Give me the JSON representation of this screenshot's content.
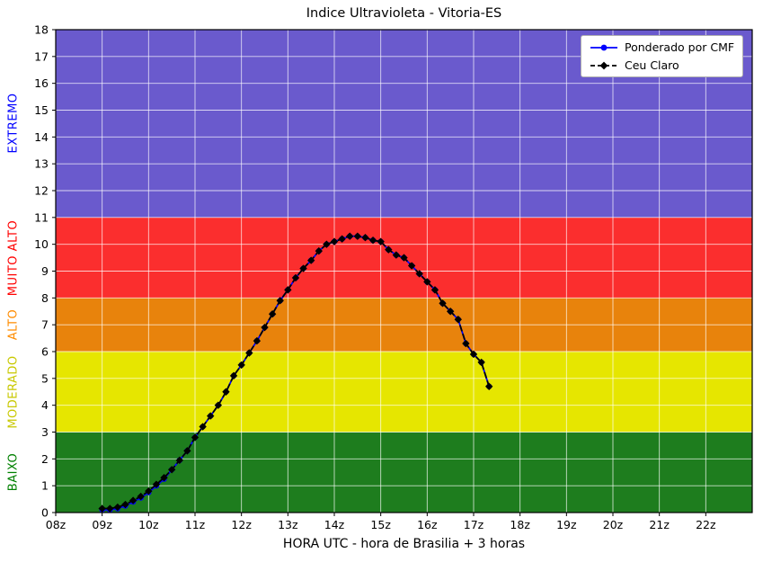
{
  "chart_data": {
    "type": "line",
    "title": "Indice Ultravioleta - Vitoria-ES",
    "xlabel": "HORA UTC - hora de Brasilia + 3 horas",
    "ylabel": "",
    "xlim": [
      8,
      23
    ],
    "ylim": [
      0,
      18
    ],
    "grid": true,
    "grid_color": "#ffffff",
    "x_ticks": [
      {
        "value": 8,
        "label": "08z"
      },
      {
        "value": 9,
        "label": "09z"
      },
      {
        "value": 10,
        "label": "10z"
      },
      {
        "value": 11,
        "label": "11z"
      },
      {
        "value": 12,
        "label": "12z"
      },
      {
        "value": 13,
        "label": "13z"
      },
      {
        "value": 14,
        "label": "14z"
      },
      {
        "value": 15,
        "label": "15z"
      },
      {
        "value": 16,
        "label": "16z"
      },
      {
        "value": 17,
        "label": "17z"
      },
      {
        "value": 18,
        "label": "18z"
      },
      {
        "value": 19,
        "label": "19z"
      },
      {
        "value": 20,
        "label": "20z"
      },
      {
        "value": 21,
        "label": "21z"
      },
      {
        "value": 22,
        "label": "22z"
      }
    ],
    "y_ticks": [
      0,
      1,
      2,
      3,
      4,
      5,
      6,
      7,
      8,
      9,
      10,
      11,
      12,
      13,
      14,
      15,
      16,
      17,
      18
    ],
    "bands": [
      {
        "name": "BAIXO",
        "from": 0,
        "to": 3,
        "color": "#1e7d1e",
        "label_color": "#008000"
      },
      {
        "name": "MODERADO",
        "from": 3,
        "to": 6,
        "color": "#e6e600",
        "label_color": "#c8c800"
      },
      {
        "name": "ALTO",
        "from": 6,
        "to": 8,
        "color": "#e8830c",
        "label_color": "#ff8c00"
      },
      {
        "name": "MUITO ALTO",
        "from": 8,
        "to": 11,
        "color": "#fb2e2e",
        "label_color": "#ff0000"
      },
      {
        "name": "EXTREMO",
        "from": 11,
        "to": 18,
        "color": "#6a5acd",
        "label_color": "#0000ff"
      }
    ],
    "legend": {
      "position": "top-right",
      "entries": [
        {
          "label": "Ponderado por CMF",
          "color": "#0000ff",
          "marker": "circle",
          "line": "solid"
        },
        {
          "label": "Ceu Claro",
          "color": "#000000",
          "marker": "diamond",
          "line": "dashed"
        }
      ]
    },
    "x": [
      9.0,
      9.167,
      9.333,
      9.5,
      9.667,
      9.833,
      10.0,
      10.167,
      10.333,
      10.5,
      10.667,
      10.833,
      11.0,
      11.167,
      11.333,
      11.5,
      11.667,
      11.833,
      12.0,
      12.167,
      12.333,
      12.5,
      12.667,
      12.833,
      13.0,
      13.167,
      13.333,
      13.5,
      13.667,
      13.833,
      14.0,
      14.167,
      14.333,
      14.5,
      14.667,
      14.833,
      15.0,
      15.167,
      15.333,
      15.5,
      15.667,
      15.833,
      16.0,
      16.167,
      16.333,
      16.5,
      16.667,
      16.833,
      17.0,
      17.167,
      17.333
    ],
    "series": [
      {
        "name": "Ponderado por CMF",
        "color": "#0000ff",
        "line": "solid",
        "marker": "circle",
        "values": [
          0.1,
          0.1,
          0.15,
          0.25,
          0.4,
          0.55,
          0.75,
          1.0,
          1.25,
          1.6,
          1.95,
          2.3,
          2.8,
          3.2,
          3.6,
          4.0,
          4.5,
          5.1,
          5.5,
          5.95,
          6.4,
          6.9,
          7.4,
          7.9,
          8.3,
          8.75,
          9.1,
          9.4,
          9.75,
          10.0,
          10.1,
          10.2,
          10.3,
          10.3,
          10.25,
          10.15,
          10.1,
          9.8,
          9.6,
          9.5,
          9.2,
          8.9,
          8.6,
          8.3,
          7.8,
          7.5,
          7.2,
          6.3,
          5.9,
          5.6,
          4.7
        ]
      },
      {
        "name": "Ceu Claro",
        "color": "#000000",
        "line": "dashed",
        "marker": "diamond",
        "values": [
          0.15,
          0.15,
          0.2,
          0.3,
          0.45,
          0.6,
          0.8,
          1.05,
          1.3,
          1.6,
          1.95,
          2.3,
          2.8,
          3.2,
          3.6,
          4.0,
          4.5,
          5.1,
          5.5,
          5.95,
          6.4,
          6.9,
          7.4,
          7.9,
          8.3,
          8.75,
          9.1,
          9.4,
          9.75,
          10.0,
          10.1,
          10.2,
          10.3,
          10.3,
          10.25,
          10.15,
          10.1,
          9.8,
          9.6,
          9.5,
          9.2,
          8.9,
          8.6,
          8.3,
          7.8,
          7.5,
          7.2,
          6.3,
          5.9,
          5.6,
          4.7
        ]
      }
    ]
  }
}
